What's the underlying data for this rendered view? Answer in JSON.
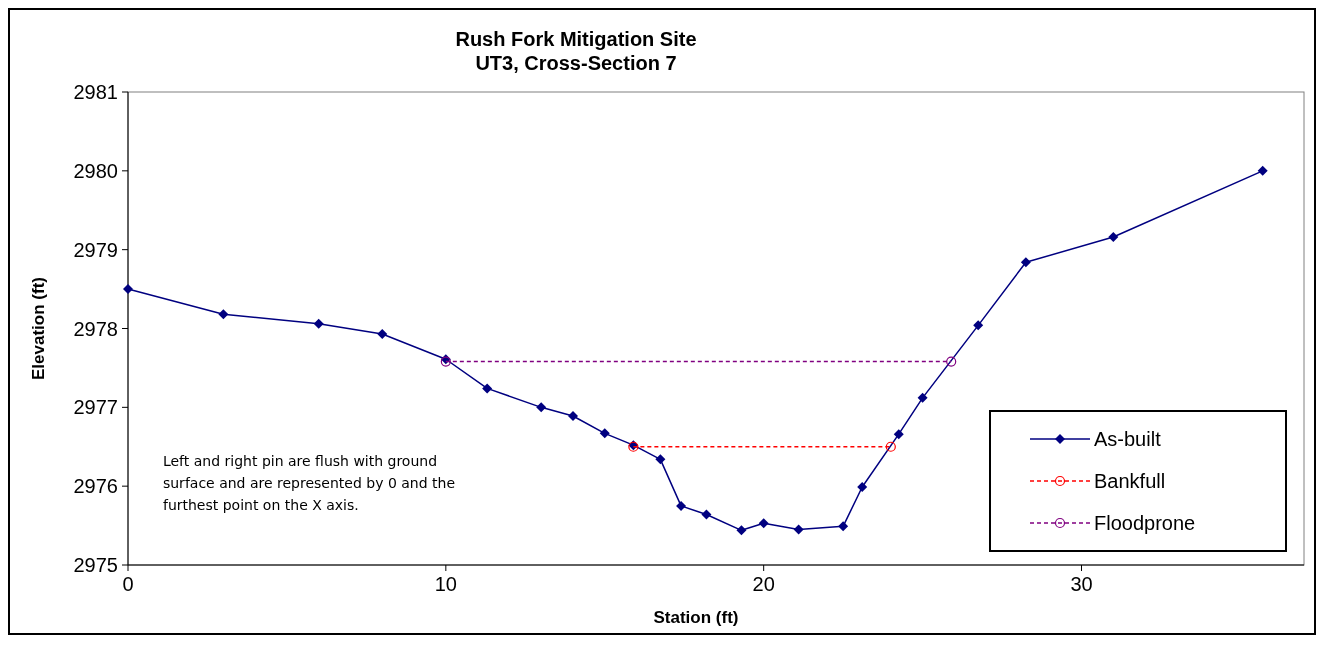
{
  "chart_data": {
    "type": "line",
    "title": "Rush Fork Mitigation Site\nUT3, Cross-Section 7",
    "xlabel": "Station (ft)",
    "ylabel": "Elevation (ft)",
    "xlim": [
      0,
      37
    ],
    "xticks": [
      0,
      10,
      20,
      30
    ],
    "ylim": [
      2975,
      2981
    ],
    "yticks": [
      2975,
      2976,
      2977,
      2978,
      2979,
      2980,
      2981
    ],
    "grid": false,
    "legend": "bottom right",
    "annotations": [
      "Left and right pin are flush with ground surface and are represented by 0 and the furthest point on the X axis."
    ],
    "series": [
      {
        "name": "As-built",
        "color": "#000080",
        "marker": "diamond",
        "line_style": "solid",
        "x": [
          0,
          3,
          6,
          8,
          10,
          11.3,
          13,
          14,
          15,
          15.9,
          16.75,
          17.4,
          18.2,
          19.3,
          20,
          21.1,
          22.5,
          23.1,
          24.25,
          25,
          26.75,
          28.25,
          31,
          35.7
        ],
        "values": [
          2978.5,
          2978.18,
          2978.06,
          2977.93,
          2977.61,
          2977.24,
          2977.0,
          2976.89,
          2976.67,
          2976.52,
          2976.34,
          2975.75,
          2975.64,
          2975.44,
          2975.53,
          2975.45,
          2975.49,
          2975.99,
          2976.66,
          2977.12,
          2978.04,
          2978.84,
          2979.16,
          2980.0
        ]
      },
      {
        "name": "Bankfull",
        "color": "#ff0000",
        "marker": "circle",
        "line_style": "dashed",
        "x": [
          15.9,
          24
        ],
        "values": [
          2976.5,
          2976.5
        ]
      },
      {
        "name": "Floodprone",
        "color": "#800080",
        "marker": "circle",
        "line_style": "dashed",
        "x": [
          10,
          25.9
        ],
        "values": [
          2977.58,
          2977.58
        ]
      }
    ]
  }
}
